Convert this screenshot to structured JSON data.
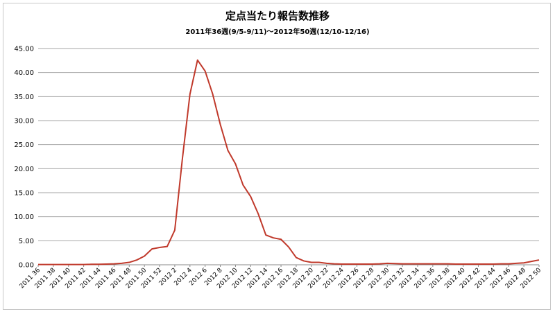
{
  "chart_data": {
    "type": "line",
    "title": "定点当たり報告数推移",
    "subtitle": "2011年36週(9/5-9/11)～2012年50週(12/10-12/16)",
    "xlabel": "",
    "ylabel": "",
    "ylim": [
      0,
      45
    ],
    "y_ticks": [
      "0.00",
      "5.00",
      "10.00",
      "15.00",
      "20.00",
      "25.00",
      "30.00",
      "35.00",
      "40.00",
      "45.00"
    ],
    "grid": true,
    "legend": "none",
    "line_color": "#c0392b",
    "x_tick_labels": [
      "2011 36",
      "2011 38",
      "2011 40",
      "2011 42",
      "2011 44",
      "2011 46",
      "2011 48",
      "2011 50",
      "2011 52",
      "2012 2",
      "2012 4",
      "2012 6",
      "2012 8",
      "2012 10",
      "2012 12",
      "2012 14",
      "2012 16",
      "2012 18",
      "2012 20",
      "2012 22",
      "2012 24",
      "2012 26",
      "2012 28",
      "2012 30",
      "2012 32",
      "2012 34",
      "2012 36",
      "2012 38",
      "2012 40",
      "2012 42",
      "2012 44",
      "2012 46",
      "2012 48",
      "2012 50"
    ],
    "x": [
      "2011 36",
      "2011 37",
      "2011 38",
      "2011 39",
      "2011 40",
      "2011 41",
      "2011 42",
      "2011 43",
      "2011 44",
      "2011 45",
      "2011 46",
      "2011 47",
      "2011 48",
      "2011 49",
      "2011 50",
      "2011 51",
      "2011 52",
      "2012 1",
      "2012 2",
      "2012 3",
      "2012 4",
      "2012 5",
      "2012 6",
      "2012 7",
      "2012 8",
      "2012 9",
      "2012 10",
      "2012 11",
      "2012 12",
      "2012 13",
      "2012 14",
      "2012 15",
      "2012 16",
      "2012 17",
      "2012 18",
      "2012 19",
      "2012 20",
      "2012 21",
      "2012 22",
      "2012 23",
      "2012 24",
      "2012 25",
      "2012 26",
      "2012 27",
      "2012 28",
      "2012 29",
      "2012 30",
      "2012 31",
      "2012 32",
      "2012 33",
      "2012 34",
      "2012 35",
      "2012 36",
      "2012 37",
      "2012 38",
      "2012 39",
      "2012 40",
      "2012 41",
      "2012 42",
      "2012 43",
      "2012 44",
      "2012 45",
      "2012 46",
      "2012 47",
      "2012 48",
      "2012 49",
      "2012 50"
    ],
    "values": [
      0.05,
      0.05,
      0.05,
      0.05,
      0.05,
      0.05,
      0.05,
      0.1,
      0.1,
      0.15,
      0.2,
      0.3,
      0.5,
      1.0,
      1.8,
      3.3,
      3.6,
      3.8,
      7.2,
      22.0,
      35.5,
      42.6,
      40.3,
      35.5,
      29.2,
      23.8,
      21.0,
      16.6,
      14.2,
      10.6,
      6.2,
      5.6,
      5.3,
      3.7,
      1.5,
      0.8,
      0.5,
      0.5,
      0.3,
      0.2,
      0.15,
      0.15,
      0.15,
      0.15,
      0.15,
      0.2,
      0.3,
      0.25,
      0.2,
      0.2,
      0.2,
      0.2,
      0.2,
      0.2,
      0.2,
      0.15,
      0.15,
      0.15,
      0.15,
      0.15,
      0.15,
      0.2,
      0.2,
      0.3,
      0.4,
      0.7,
      1.0
    ]
  }
}
